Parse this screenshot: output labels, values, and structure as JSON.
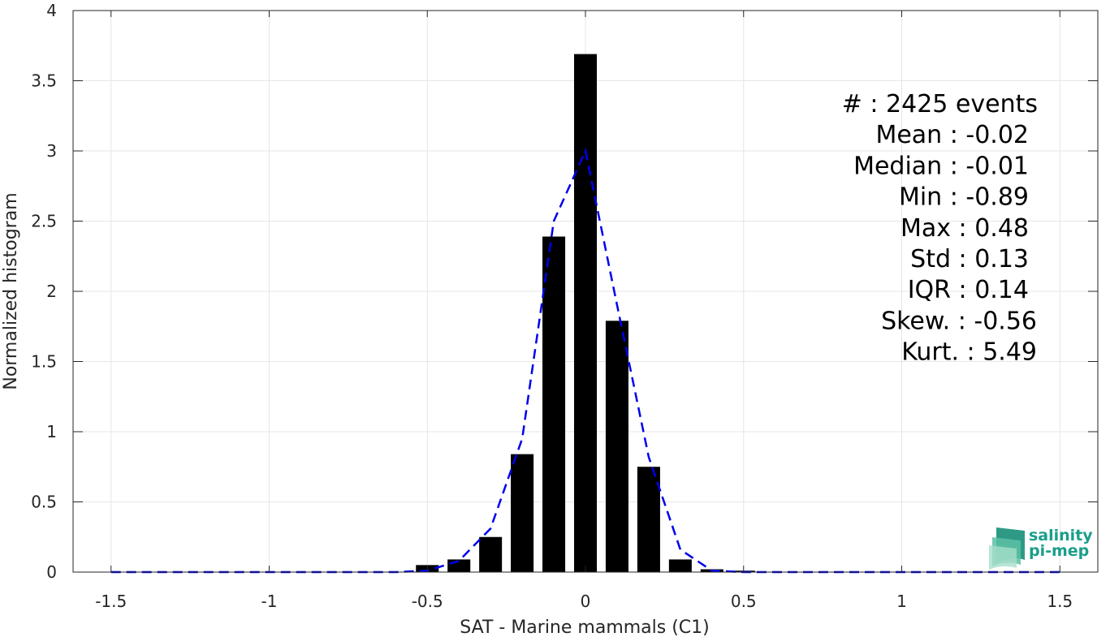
{
  "chart_data": {
    "type": "bar",
    "xlabel": "SAT - Marine mammals (C1)",
    "ylabel": "Normalized histogram",
    "xlim": [
      -1.62,
      1.62
    ],
    "ylim": [
      0,
      4
    ],
    "grid": true,
    "x_ticks": [
      -1.5,
      -1,
      -0.5,
      0,
      0.5,
      1,
      1.5
    ],
    "x_tick_labels": [
      "-1.5",
      "-1",
      "-0.5",
      "0",
      "0.5",
      "1",
      "1.5"
    ],
    "y_ticks": [
      0,
      0.5,
      1,
      1.5,
      2,
      2.5,
      3,
      3.5,
      4
    ],
    "y_tick_labels": [
      "0",
      "0.5",
      "1",
      "1.5",
      "2",
      "2.5",
      "3",
      "3.5",
      "4"
    ],
    "bars": {
      "x": [
        -0.5,
        -0.4,
        -0.3,
        -0.2,
        -0.1,
        0,
        0.1,
        0.2,
        0.3,
        0.4,
        0.5
      ],
      "values": [
        0.05,
        0.09,
        0.25,
        0.84,
        2.39,
        3.69,
        1.79,
        0.75,
        0.09,
        0.02,
        0.01
      ],
      "color": "#000000"
    },
    "fit_curve": {
      "style": "dashed",
      "color": "#0000ee",
      "x": [
        -1.5,
        -1.0,
        -0.6,
        -0.5,
        -0.4,
        -0.3,
        -0.2,
        -0.1,
        0,
        0.1,
        0.2,
        0.3,
        0.4,
        0.5,
        1.0,
        1.5
      ],
      "y": [
        0.0,
        0.0,
        0.0,
        0.01,
        0.08,
        0.31,
        0.95,
        2.5,
        3.0,
        1.9,
        0.82,
        0.16,
        0.01,
        0.0,
        0.0,
        0.0
      ]
    },
    "stats": [
      "#  : 2425 events",
      "Mean : -0.02",
      "Median : -0.01",
      "Min : -0.89",
      "Max : 0.48",
      "Std : 0.13",
      "IQR : 0.14",
      "Skew. : -0.56",
      "Kurt. : 5.49"
    ]
  },
  "logo": {
    "line1": "salinity",
    "line2": "pi-mep",
    "color": "#1a9e8a"
  }
}
